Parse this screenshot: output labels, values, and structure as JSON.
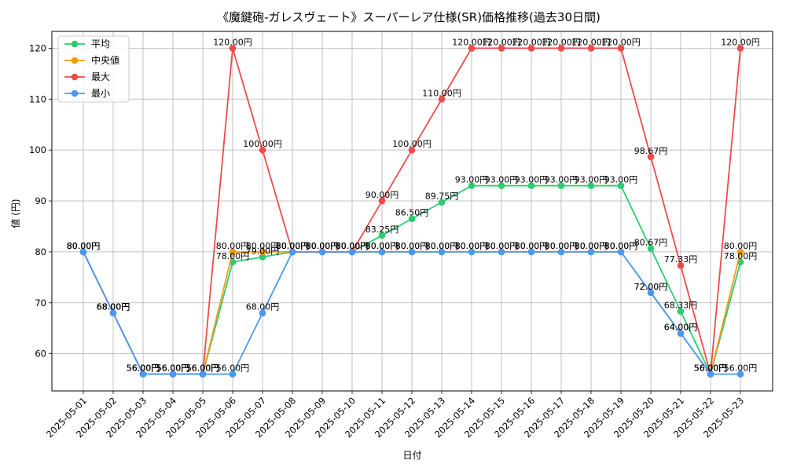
{
  "chart_data": {
    "type": "line",
    "title": "《魔鍵砲-ガレスヴェート》スーパーレア仕様(SR)価格推移(過去30日間)",
    "xlabel": "日付",
    "ylabel": "値 (円)",
    "ylim": [
      52.7,
      123.3
    ],
    "yticks": [
      60,
      70,
      80,
      90,
      100,
      110,
      120
    ],
    "grid": true,
    "legend_position": "top-left",
    "label_suffix": "円",
    "categories": [
      "2025-05-01",
      "2025-05-02",
      "2025-05-03",
      "2025-05-04",
      "2025-05-05",
      "2025-05-06",
      "2025-05-07",
      "2025-05-08",
      "2025-05-09",
      "2025-05-10",
      "2025-05-11",
      "2025-05-12",
      "2025-05-13",
      "2025-05-14",
      "2025-05-15",
      "2025-05-16",
      "2025-05-17",
      "2025-05-18",
      "2025-05-19",
      "2025-05-20",
      "2025-05-21",
      "2025-05-22",
      "2025-05-23"
    ],
    "series": [
      {
        "name": "平均",
        "color": "#2ecc71",
        "values": [
          80,
          68,
          56,
          56,
          56,
          78,
          79,
          80,
          80,
          80,
          83.25,
          86.5,
          89.75,
          93,
          93,
          93,
          93,
          93,
          93,
          80.67,
          68.33,
          56,
          78
        ]
      },
      {
        "name": "中央値",
        "color": "#f39c12",
        "values": [
          80,
          68,
          56,
          56,
          56,
          80,
          80,
          80,
          80,
          80,
          80,
          80,
          80,
          80,
          80,
          80,
          80,
          80,
          80,
          72,
          64,
          56,
          80
        ]
      },
      {
        "name": "最大",
        "color": "#ef4b4b",
        "values": [
          80,
          68,
          56,
          56,
          56,
          120,
          100,
          80,
          80,
          80,
          90,
          100,
          110,
          120,
          120,
          120,
          120,
          120,
          120,
          98.67,
          77.33,
          56,
          120
        ]
      },
      {
        "name": "最小",
        "color": "#4a99f0",
        "values": [
          80,
          68,
          56,
          56,
          56,
          56,
          68,
          80,
          80,
          80,
          80,
          80,
          80,
          80,
          80,
          80,
          80,
          80,
          80,
          72,
          64,
          56,
          56
        ]
      }
    ]
  }
}
